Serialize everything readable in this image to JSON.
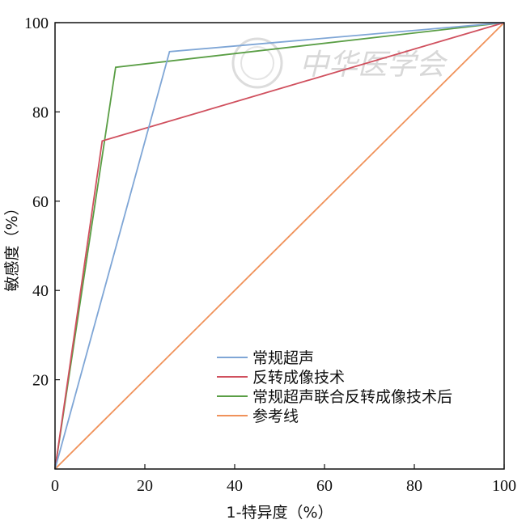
{
  "chart_data": {
    "type": "line",
    "xlabel": "1-特异度（%）",
    "ylabel": "敏感度（%）",
    "xlim": [
      0,
      100
    ],
    "ylim": [
      0,
      100
    ],
    "x_ticks": [
      "0",
      "20",
      "40",
      "60",
      "80",
      "100"
    ],
    "y_ticks": [
      "20",
      "40",
      "60",
      "80",
      "100"
    ],
    "grid": false,
    "legend_position": "bottom-right",
    "series": [
      {
        "name": "常规超声",
        "color": "#7fa6d6",
        "x": [
          0,
          25.5,
          100
        ],
        "y": [
          0,
          93.5,
          100
        ]
      },
      {
        "name": "反转成像技术",
        "color": "#d0505e",
        "x": [
          0,
          10.5,
          100
        ],
        "y": [
          0,
          73.5,
          100
        ]
      },
      {
        "name": "常规超声联合反转成像技术后",
        "color": "#5a9e45",
        "x": [
          0,
          13.5,
          100
        ],
        "y": [
          0,
          90,
          100
        ]
      },
      {
        "name": "参考线",
        "color": "#f0925a",
        "x": [
          0,
          100
        ],
        "y": [
          0,
          100
        ]
      }
    ]
  },
  "watermark": {
    "text": "中华医学会"
  }
}
